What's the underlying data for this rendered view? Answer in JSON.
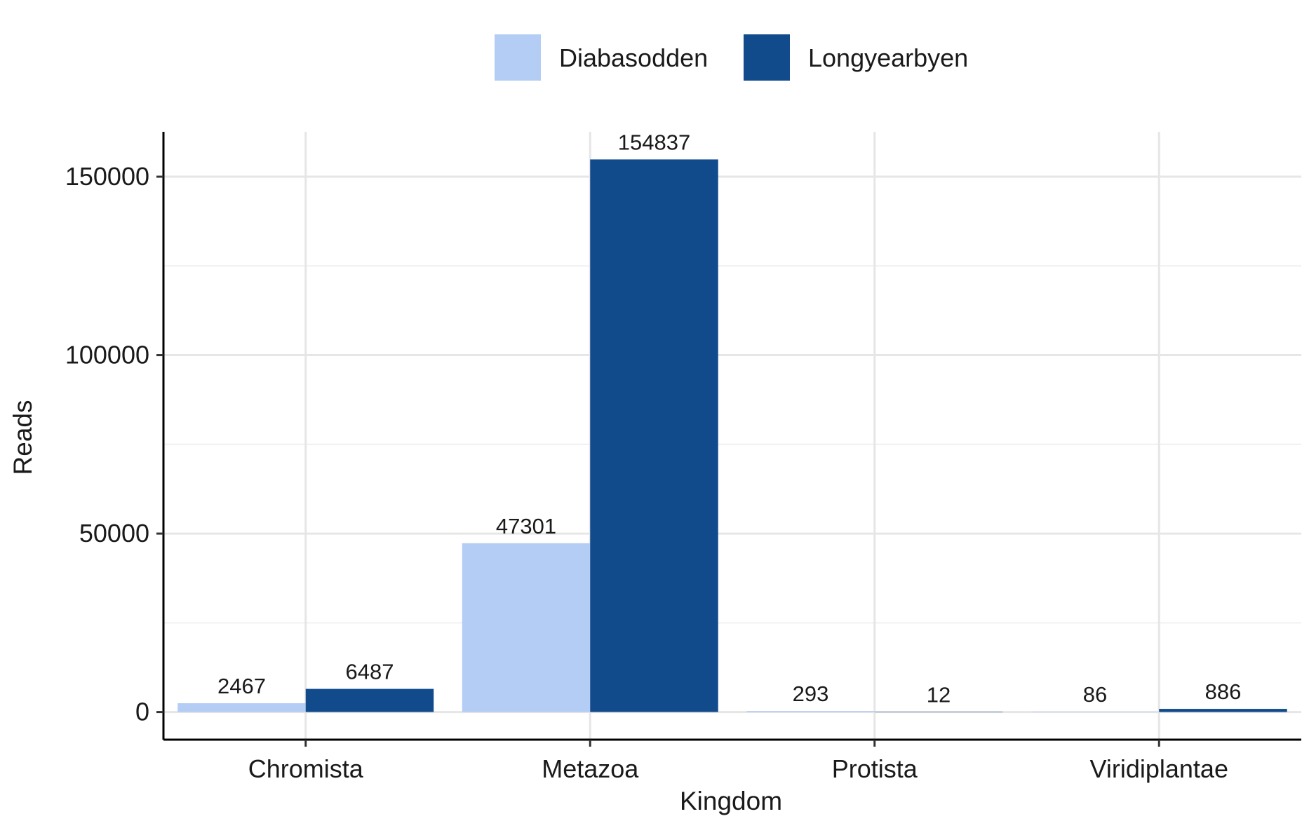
{
  "chart_data": {
    "type": "bar",
    "xlabel": "Kingdom",
    "ylabel": "Reads",
    "categories": [
      "Chromista",
      "Metazoa",
      "Protista",
      "Viridiplantae"
    ],
    "series": [
      {
        "name": "Diabasodden",
        "color": "#b3cdf5",
        "values": [
          2467,
          47301,
          293,
          86
        ]
      },
      {
        "name": "Longyearbyen",
        "color": "#124b8c",
        "values": [
          6487,
          154837,
          12,
          886
        ]
      }
    ],
    "data_labels": [
      [
        "2467",
        "47301",
        "293",
        "86"
      ],
      [
        "6487",
        "154837",
        "12",
        "886"
      ]
    ],
    "yticks": [
      0,
      50000,
      100000,
      150000
    ],
    "ytick_labels": [
      "0",
      "50000",
      "100000",
      "150000"
    ],
    "ylim": [
      -7742,
      162579
    ],
    "grid": true,
    "legend_position": "top"
  }
}
